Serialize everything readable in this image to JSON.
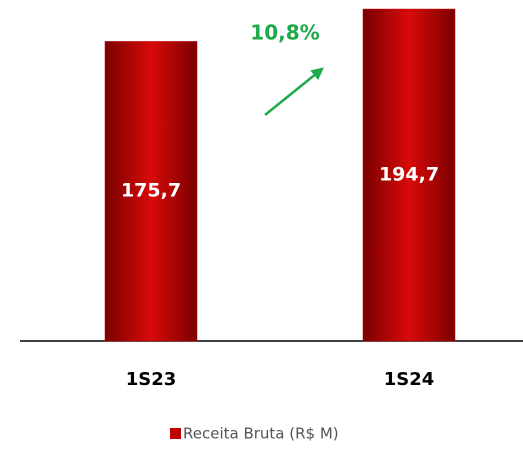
{
  "chart_data": {
    "type": "bar",
    "categories": [
      "1S23",
      "1S24"
    ],
    "series": [
      {
        "name": "Receita Bruta (R$ M)",
        "color": "#c00000",
        "values": [
          175.7,
          194.7
        ],
        "value_labels": [
          "175,7",
          "194,7"
        ]
      }
    ],
    "ylim": [
      0,
      200
    ],
    "annotations": [
      "10,8%"
    ],
    "annotation_color": "#1daa4a",
    "legend": "bottom"
  }
}
